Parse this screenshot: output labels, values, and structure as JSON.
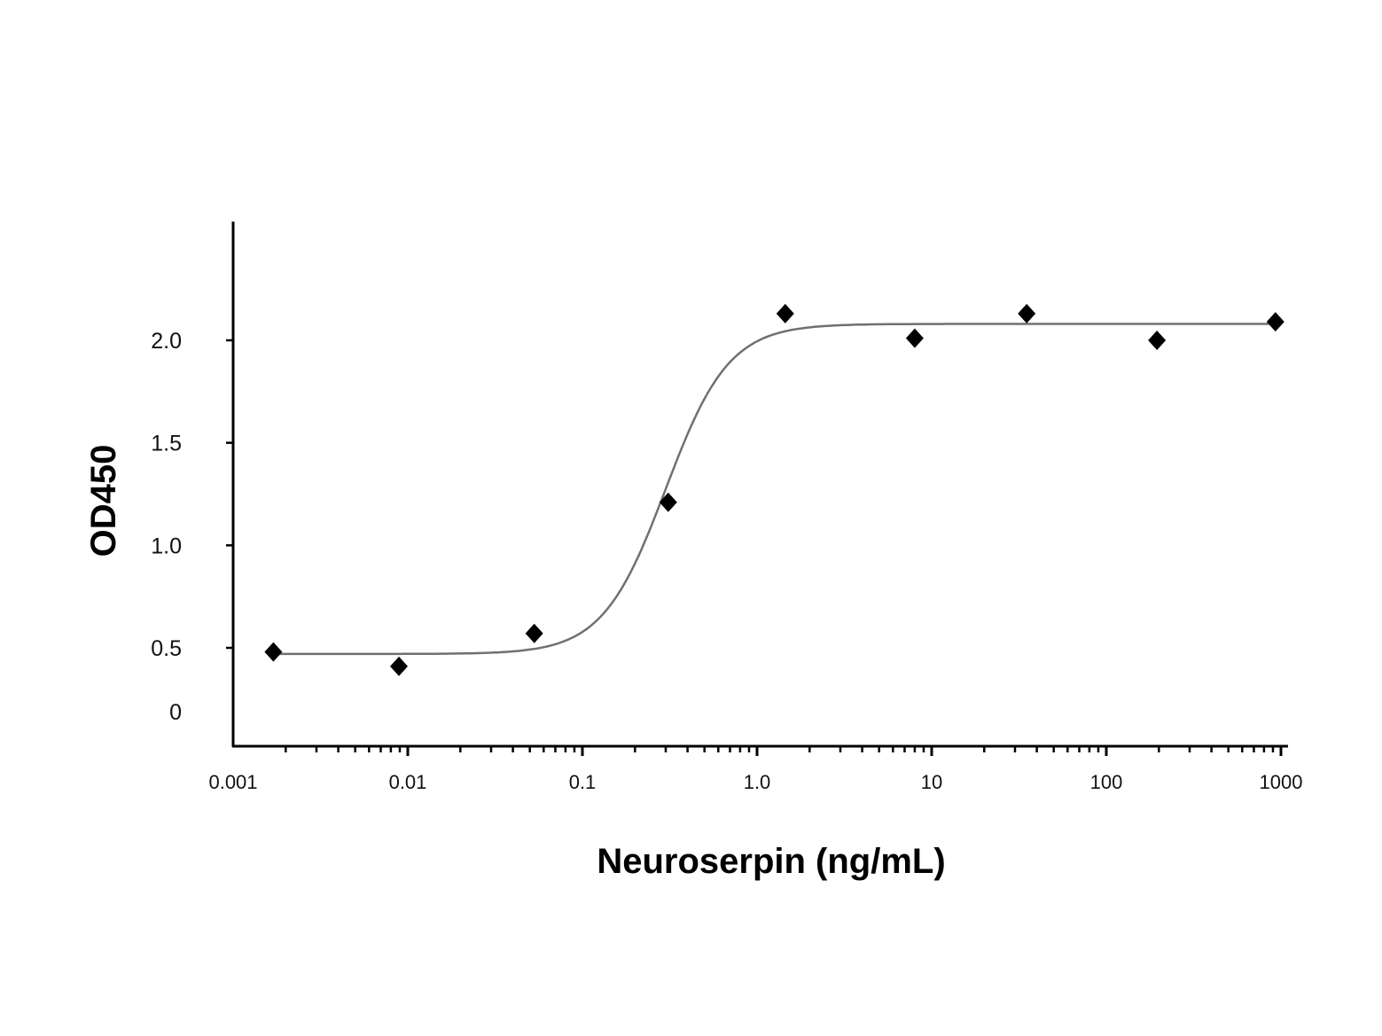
{
  "chart_data": {
    "type": "scatter",
    "title": "",
    "xlabel": "Neuroserpin (ng/mL)",
    "ylabel": "OD450",
    "x_scale": "log",
    "xlim": [
      0.001,
      1000
    ],
    "ylim": [
      0,
      2.5
    ],
    "x_ticks": [
      {
        "value": 0.001,
        "label": "0.001"
      },
      {
        "value": 0.01,
        "label": "0.01"
      },
      {
        "value": 0.1,
        "label": "0.1"
      },
      {
        "value": 1,
        "label": "1.0"
      },
      {
        "value": 10,
        "label": "10"
      },
      {
        "value": 100,
        "label": "100"
      },
      {
        "value": 1000,
        "label": "1000"
      }
    ],
    "y_ticks": [
      {
        "value": 0,
        "label": "0"
      },
      {
        "value": 0.5,
        "label": "0.5"
      },
      {
        "value": 1.0,
        "label": "1.0"
      },
      {
        "value": 1.5,
        "label": "1.5"
      },
      {
        "value": 2.0,
        "label": "2.0"
      }
    ],
    "grid": false,
    "series": [
      {
        "marker": "diamond",
        "color": "#000000",
        "points": [
          {
            "x": 0.0017,
            "y": 0.48
          },
          {
            "x": 0.0089,
            "y": 0.41
          },
          {
            "x": 0.053,
            "y": 0.57
          },
          {
            "x": 0.31,
            "y": 1.21
          },
          {
            "x": 1.45,
            "y": 2.13
          },
          {
            "x": 8.0,
            "y": 2.01
          },
          {
            "x": 35,
            "y": 2.13
          },
          {
            "x": 195,
            "y": 2.0
          },
          {
            "x": 930,
            "y": 2.09
          }
        ]
      }
    ],
    "fit_curve": {
      "type": "4PL",
      "color": "#707070",
      "bottom": 0.47,
      "top": 2.08,
      "ec50": 0.3,
      "hill": 2.4
    }
  }
}
